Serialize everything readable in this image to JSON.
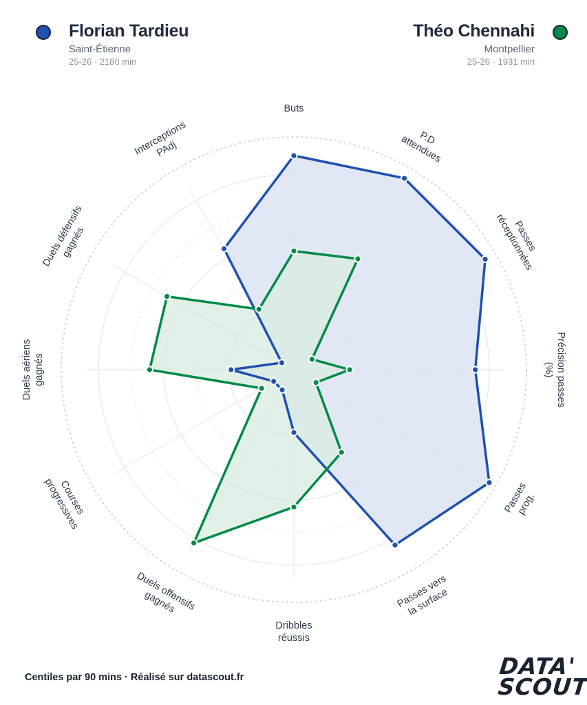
{
  "players": [
    {
      "name": "Florian Tardieu",
      "club": "Saint-Étienne",
      "meta": "25-26 · 2180 min",
      "color": "#2050b0",
      "fill": "#dde3f4"
    },
    {
      "name": "Théo Chennahi",
      "club": "Montpellier",
      "meta": "25-26 · 1931 min",
      "color": "#008a46",
      "fill": "#d8ecdf"
    }
  ],
  "chart_data": {
    "type": "radar",
    "scale": [
      0,
      100
    ],
    "categories": [
      "Buts",
      "P.D attendues",
      "Passes réceptionnées",
      "Précision passes (%)",
      "Passes prog.",
      "Passes vers la surface",
      "Dribbles réussis",
      "Duels offensifs gagnés",
      "Courses progressives",
      "Duels aériens gagnés",
      "Duels défensifs gagnés",
      "Interceptions PAdj"
    ],
    "label_lines": [
      [
        "Buts"
      ],
      [
        "P.D",
        "attendues"
      ],
      [
        "Passes",
        "réceptionnées"
      ],
      [
        "Précision passes",
        "(%)"
      ],
      [
        "Passes",
        "prog."
      ],
      [
        "Passes vers",
        "la surface"
      ],
      [
        "Dribbles",
        "réussis"
      ],
      [
        "Duels offensifs",
        "gagnés"
      ],
      [
        "Courses",
        "progressives"
      ],
      [
        "Duels aériens",
        "gagnés"
      ],
      [
        "Duels défensifs",
        "gagnés"
      ],
      [
        "Interceptions",
        "PAdj"
      ]
    ],
    "series": [
      {
        "name": "Florian Tardieu",
        "values": [
          92,
          95,
          95,
          78,
          97,
          87,
          27,
          10,
          10,
          27,
          6,
          60
        ]
      },
      {
        "name": "Théo Chennahi",
        "values": [
          51,
          55,
          9,
          24,
          11,
          41,
          59,
          86,
          16,
          62,
          63,
          30
        ]
      }
    ]
  },
  "footer": "Centiles par 90 mins · Réalisé sur datascout.fr",
  "logo": {
    "line1": "DATA'",
    "line2": "SCOUT"
  }
}
